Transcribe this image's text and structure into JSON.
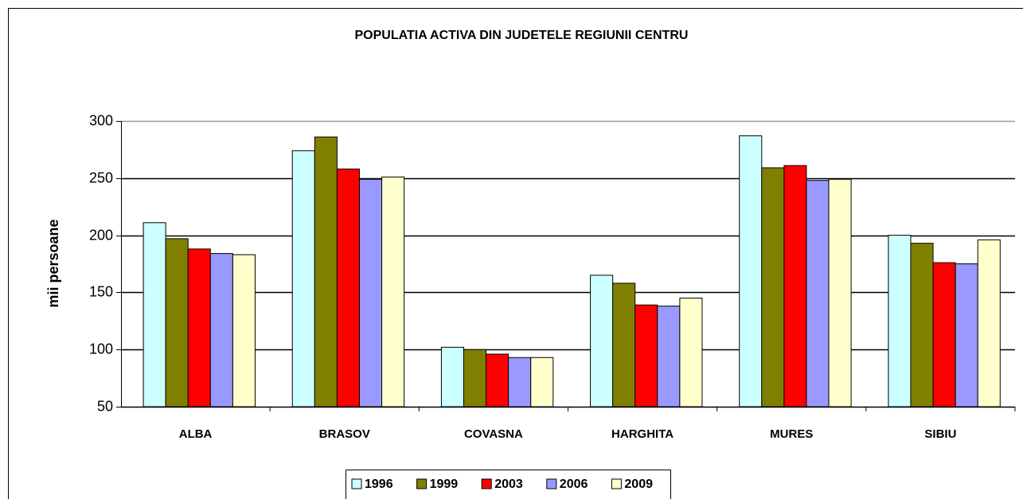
{
  "chart_data": {
    "type": "bar",
    "title": "POPULATIA ACTIVA DIN JUDETELE REGIUNII CENTRU",
    "ylabel": "mii persoane",
    "categories": [
      "ALBA",
      "BRASOV",
      "COVASNA",
      "HARGHITA",
      "MURES",
      "SIBIU"
    ],
    "series": [
      {
        "name": "1996",
        "color": "#ccffff",
        "values": [
          211,
          274,
          102,
          165,
          287,
          200
        ]
      },
      {
        "name": "1999",
        "color": "#808000",
        "values": [
          197,
          286,
          100,
          158,
          259,
          193
        ]
      },
      {
        "name": "2003",
        "color": "#ff0000",
        "values": [
          188,
          258,
          96,
          139,
          261,
          176
        ]
      },
      {
        "name": "2006",
        "color": "#9999ff",
        "values": [
          184,
          249,
          93,
          138,
          248,
          175
        ]
      },
      {
        "name": "2009",
        "color": "#ffffcc",
        "values": [
          183,
          251,
          93,
          145,
          249,
          196
        ]
      }
    ],
    "ylim": [
      50,
      300
    ],
    "yticks": [
      50,
      100,
      150,
      200,
      250,
      300
    ],
    "grid": true,
    "legend": "bottom"
  }
}
